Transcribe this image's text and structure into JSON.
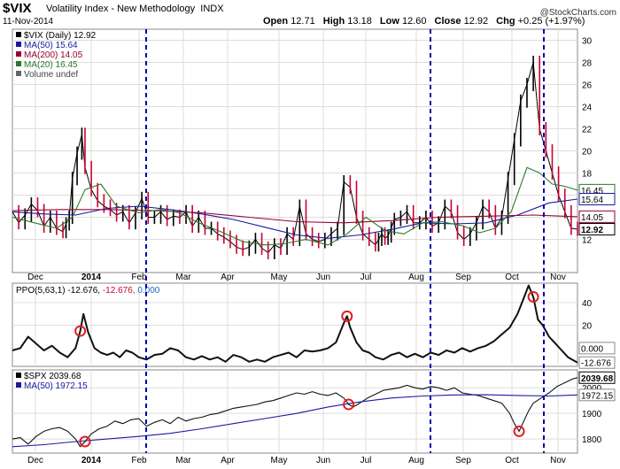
{
  "header": {
    "ticker": "$VIX",
    "name": "Volatility Index - New Methodology",
    "exchange": "INDX",
    "date": "11-Nov-2014",
    "watermark": "@StockCharts.com",
    "quote": {
      "open_label": "Open",
      "open": "12.71",
      "high_label": "High",
      "high": "13.18",
      "low_label": "Low",
      "low": "12.60",
      "close_label": "Close",
      "close": "12.92",
      "chg_label": "Chg",
      "chg": "+0.25 (+1.97%)"
    }
  },
  "colors": {
    "price": "#000000",
    "down": "#cc0033",
    "ma50": "#1a1aa0",
    "ma200": "#990033",
    "ma20": "#2a7a2a",
    "marker": "#e02020",
    "vline": "#0000aa",
    "grid": "#dddddd"
  },
  "chart_data": [
    {
      "type": "line",
      "panel": "vix",
      "legend": [
        {
          "text": "$VIX (Daily) 12.92",
          "color": "#000000"
        },
        {
          "text": "MA(50) 15.64",
          "color": "#1a1aa0"
        },
        {
          "text": "MA(200) 14.05",
          "color": "#990033"
        },
        {
          "text": "MA(20) 16.45",
          "color": "#2a7a2a"
        },
        {
          "text": "Volume undef",
          "color": "#666666"
        }
      ],
      "yticks": [
        12,
        14,
        16,
        18,
        20,
        22,
        24,
        26,
        28,
        30
      ],
      "ylim": [
        9,
        31
      ],
      "x_labels": [
        "Dec",
        "2014",
        "Feb",
        "Mar",
        "Apr",
        "May",
        "Jun",
        "Jul",
        "Aug",
        "Sep",
        "Oct",
        "Nov"
      ],
      "end_labels": [
        {
          "text": "16.45",
          "value": 16.45,
          "style": "green"
        },
        {
          "text": "15.64",
          "value": 15.64,
          "style": "blue"
        },
        {
          "text": "14.05",
          "value": 14.05,
          "style": "red"
        },
        {
          "text": "12.92",
          "value": 12.92,
          "style": "black"
        }
      ],
      "series": [
        {
          "name": "$VIX (Daily)",
          "x": [
            0,
            4,
            8,
            12,
            16,
            20,
            24,
            28,
            32,
            34,
            36,
            38,
            41,
            44,
            46,
            50,
            54,
            58,
            62,
            66,
            70,
            74,
            78,
            82,
            86,
            90,
            94,
            98,
            102,
            106,
            110,
            114,
            118,
            122,
            126,
            130,
            134,
            138,
            142,
            146,
            150,
            154,
            158,
            162,
            166,
            170,
            174,
            178,
            182,
            186,
            190,
            194,
            198,
            202,
            206,
            210,
            214,
            218,
            222,
            226,
            230,
            232,
            234,
            236,
            238,
            240,
            242,
            246,
            250,
            254,
            258,
            262,
            266,
            270,
            274,
            278,
            282,
            286,
            290,
            294,
            298,
            302,
            306,
            310,
            314,
            318,
            322,
            326,
            330,
            334,
            338,
            342,
            346,
            350,
            354,
            358
          ],
          "values": [
            14.5,
            13.5,
            14.2,
            15.2,
            14.6,
            13.2,
            14.0,
            13.0,
            12.7,
            13.4,
            14.0,
            17.5,
            19.8,
            21.5,
            18.5,
            16.5,
            15.5,
            15.0,
            14.7,
            14.2,
            14.5,
            13.5,
            14.4,
            15.7,
            14.0,
            14.0,
            14.5,
            13.8,
            14.1,
            14.0,
            14.5,
            13.2,
            14.0,
            13.0,
            13.0,
            12.5,
            12.2,
            11.8,
            11.3,
            11.1,
            11.3,
            12.0,
            11.2,
            10.8,
            11.5,
            11.2,
            12.5,
            12.0,
            15.0,
            12.5,
            12.0,
            11.8,
            12.0,
            12.5,
            13.0,
            17.2,
            16.7,
            14.0,
            12.5,
            12.0,
            11.5,
            12.0,
            12.5,
            12.1,
            12.3,
            13.0,
            13.8,
            14.0,
            14.5,
            13.5,
            13.5,
            14.0,
            13.2,
            13.5,
            15.0,
            14.5,
            12.6,
            12.0,
            12.5,
            13.5,
            15.0,
            14.5,
            13.0,
            14.0,
            17.5,
            21.0,
            24.5,
            26.0,
            28.0,
            22.0,
            20.0,
            18.0,
            16.0,
            14.5,
            13.0,
            12.92
          ]
        },
        {
          "name": "MA(50)",
          "x": [
            0,
            20,
            40,
            60,
            80,
            100,
            120,
            140,
            160,
            180,
            200,
            220,
            240,
            260,
            280,
            300,
            320,
            340,
            358
          ],
          "values": [
            14.5,
            14.3,
            14.2,
            14.8,
            15.0,
            14.7,
            14.3,
            13.8,
            13.1,
            12.4,
            12.1,
            12.4,
            12.9,
            13.5,
            13.4,
            13.5,
            14.2,
            15.3,
            15.64
          ]
        },
        {
          "name": "MA(200)",
          "x": [
            0,
            30,
            60,
            90,
            120,
            150,
            180,
            210,
            240,
            270,
            300,
            330,
            358
          ],
          "values": [
            14.6,
            14.7,
            14.7,
            14.6,
            14.4,
            14.0,
            13.6,
            13.5,
            13.7,
            14.0,
            14.1,
            14.2,
            14.05
          ]
        },
        {
          "name": "MA(20)",
          "x": [
            0,
            14,
            28,
            38,
            46,
            56,
            66,
            80,
            94,
            106,
            118,
            132,
            146,
            160,
            172,
            186,
            200,
            212,
            224,
            236,
            248,
            260,
            272,
            286,
            296,
            306,
            316,
            326,
            334,
            342,
            350,
            358
          ],
          "values": [
            14.0,
            13.5,
            13.0,
            14.0,
            16.5,
            17.0,
            15.0,
            14.4,
            14.7,
            14.4,
            13.5,
            12.7,
            11.8,
            11.5,
            11.6,
            12.0,
            11.5,
            12.5,
            14.0,
            12.8,
            12.5,
            13.5,
            13.6,
            13.2,
            12.6,
            13.0,
            14.5,
            18.5,
            18.0,
            17.0,
            16.8,
            16.45
          ]
        }
      ]
    },
    {
      "type": "line",
      "panel": "ppo",
      "legend": [
        {
          "text": "PPO(5,63,1) -12.676, ",
          "color": "#000000"
        },
        {
          "text": "-12.676, ",
          "color": "#cc0033"
        },
        {
          "text": "0.000",
          "color": "#2266cc"
        }
      ],
      "yticks": [
        20,
        40
      ],
      "ylim": [
        -16,
        57
      ],
      "end_labels": [
        {
          "text": "0.000",
          "value": 0,
          "style": "plain"
        },
        {
          "text": "-12.676",
          "value": -12.676,
          "style": "plain"
        }
      ],
      "series": [
        {
          "name": "PPO(5,63,1)",
          "x": [
            0,
            5,
            10,
            15,
            20,
            25,
            30,
            35,
            40,
            43,
            45,
            48,
            52,
            56,
            60,
            64,
            68,
            72,
            76,
            80,
            85,
            90,
            95,
            100,
            105,
            110,
            115,
            120,
            125,
            130,
            135,
            140,
            145,
            150,
            155,
            160,
            165,
            170,
            175,
            180,
            185,
            190,
            195,
            200,
            205,
            210,
            212,
            214,
            218,
            222,
            226,
            230,
            235,
            240,
            245,
            250,
            255,
            260,
            265,
            270,
            275,
            280,
            285,
            290,
            295,
            300,
            305,
            310,
            315,
            320,
            324,
            327,
            330,
            333,
            336,
            340,
            344,
            348,
            352,
            358
          ],
          "values": [
            -2,
            0,
            10,
            4,
            -2,
            2,
            -4,
            -8,
            0,
            15,
            30,
            14,
            0,
            -4,
            -6,
            -4,
            -8,
            -2,
            -4,
            -8,
            -10,
            -6,
            -5,
            0,
            -2,
            -8,
            -10,
            -7,
            -10,
            -8,
            -12,
            -6,
            -8,
            -12,
            -10,
            -12,
            -8,
            -6,
            -4,
            -8,
            -2,
            -3,
            -2,
            0,
            5,
            22,
            28,
            18,
            5,
            -2,
            -4,
            -8,
            -10,
            -6,
            -4,
            -8,
            -5,
            -8,
            -4,
            -6,
            -2,
            -4,
            0,
            -3,
            0,
            2,
            6,
            12,
            18,
            30,
            44,
            55,
            45,
            25,
            20,
            10,
            4,
            -2,
            -8,
            -12.676
          ]
        }
      ]
    },
    {
      "type": "line",
      "panel": "spx",
      "legend": [
        {
          "text": "$SPX 2039.68",
          "color": "#000000"
        },
        {
          "text": "MA(50) 1972.15",
          "color": "#1a1aa0"
        }
      ],
      "yticks": [
        1800,
        1900,
        2000
      ],
      "ylim": [
        1745,
        2070
      ],
      "x_labels": [
        "Dec",
        "2014",
        "Feb",
        "Mar",
        "Apr",
        "May",
        "Jun",
        "Jul",
        "Aug",
        "Sep",
        "Oct",
        "Nov"
      ],
      "end_labels": [
        {
          "text": "2039.68",
          "value": 2039.68,
          "style": "bold"
        },
        {
          "text": "1972.15",
          "value": 1972.15,
          "style": "plain"
        }
      ],
      "series": [
        {
          "name": "$SPX",
          "x": [
            0,
            5,
            10,
            15,
            20,
            25,
            30,
            35,
            40,
            43,
            46,
            50,
            55,
            60,
            65,
            70,
            75,
            80,
            85,
            90,
            95,
            100,
            105,
            110,
            115,
            120,
            125,
            130,
            135,
            140,
            145,
            150,
            155,
            160,
            165,
            170,
            175,
            180,
            185,
            190,
            195,
            200,
            205,
            210,
            213,
            216,
            220,
            225,
            230,
            235,
            240,
            245,
            250,
            255,
            260,
            265,
            270,
            275,
            280,
            285,
            290,
            295,
            300,
            305,
            310,
            315,
            318,
            321,
            324,
            327,
            330,
            335,
            340,
            345,
            350,
            355,
            358
          ],
          "values": [
            1800,
            1805,
            1780,
            1810,
            1830,
            1840,
            1845,
            1830,
            1800,
            1770,
            1790,
            1820,
            1840,
            1850,
            1870,
            1860,
            1875,
            1880,
            1850,
            1865,
            1875,
            1860,
            1885,
            1870,
            1880,
            1885,
            1895,
            1900,
            1910,
            1920,
            1925,
            1930,
            1935,
            1945,
            1950,
            1960,
            1970,
            1980,
            1975,
            1985,
            1975,
            1970,
            1980,
            1960,
            1935,
            1925,
            1940,
            1960,
            1975,
            1990,
            1995,
            2000,
            2010,
            2000,
            1995,
            2005,
            2000,
            1990,
            2000,
            1980,
            1975,
            1970,
            1960,
            1950,
            1940,
            1900,
            1860,
            1830,
            1870,
            1910,
            1940,
            1960,
            1980,
            2005,
            2020,
            2035,
            2039.68
          ]
        },
        {
          "name": "MA(50)",
          "x": [
            0,
            20,
            40,
            60,
            80,
            100,
            120,
            140,
            160,
            180,
            200,
            220,
            240,
            260,
            280,
            300,
            320,
            340,
            358
          ],
          "values": [
            1770,
            1778,
            1790,
            1800,
            1810,
            1822,
            1840,
            1860,
            1880,
            1900,
            1925,
            1945,
            1960,
            1968,
            1972,
            1973,
            1970,
            1968,
            1972.15
          ]
        }
      ]
    }
  ]
}
